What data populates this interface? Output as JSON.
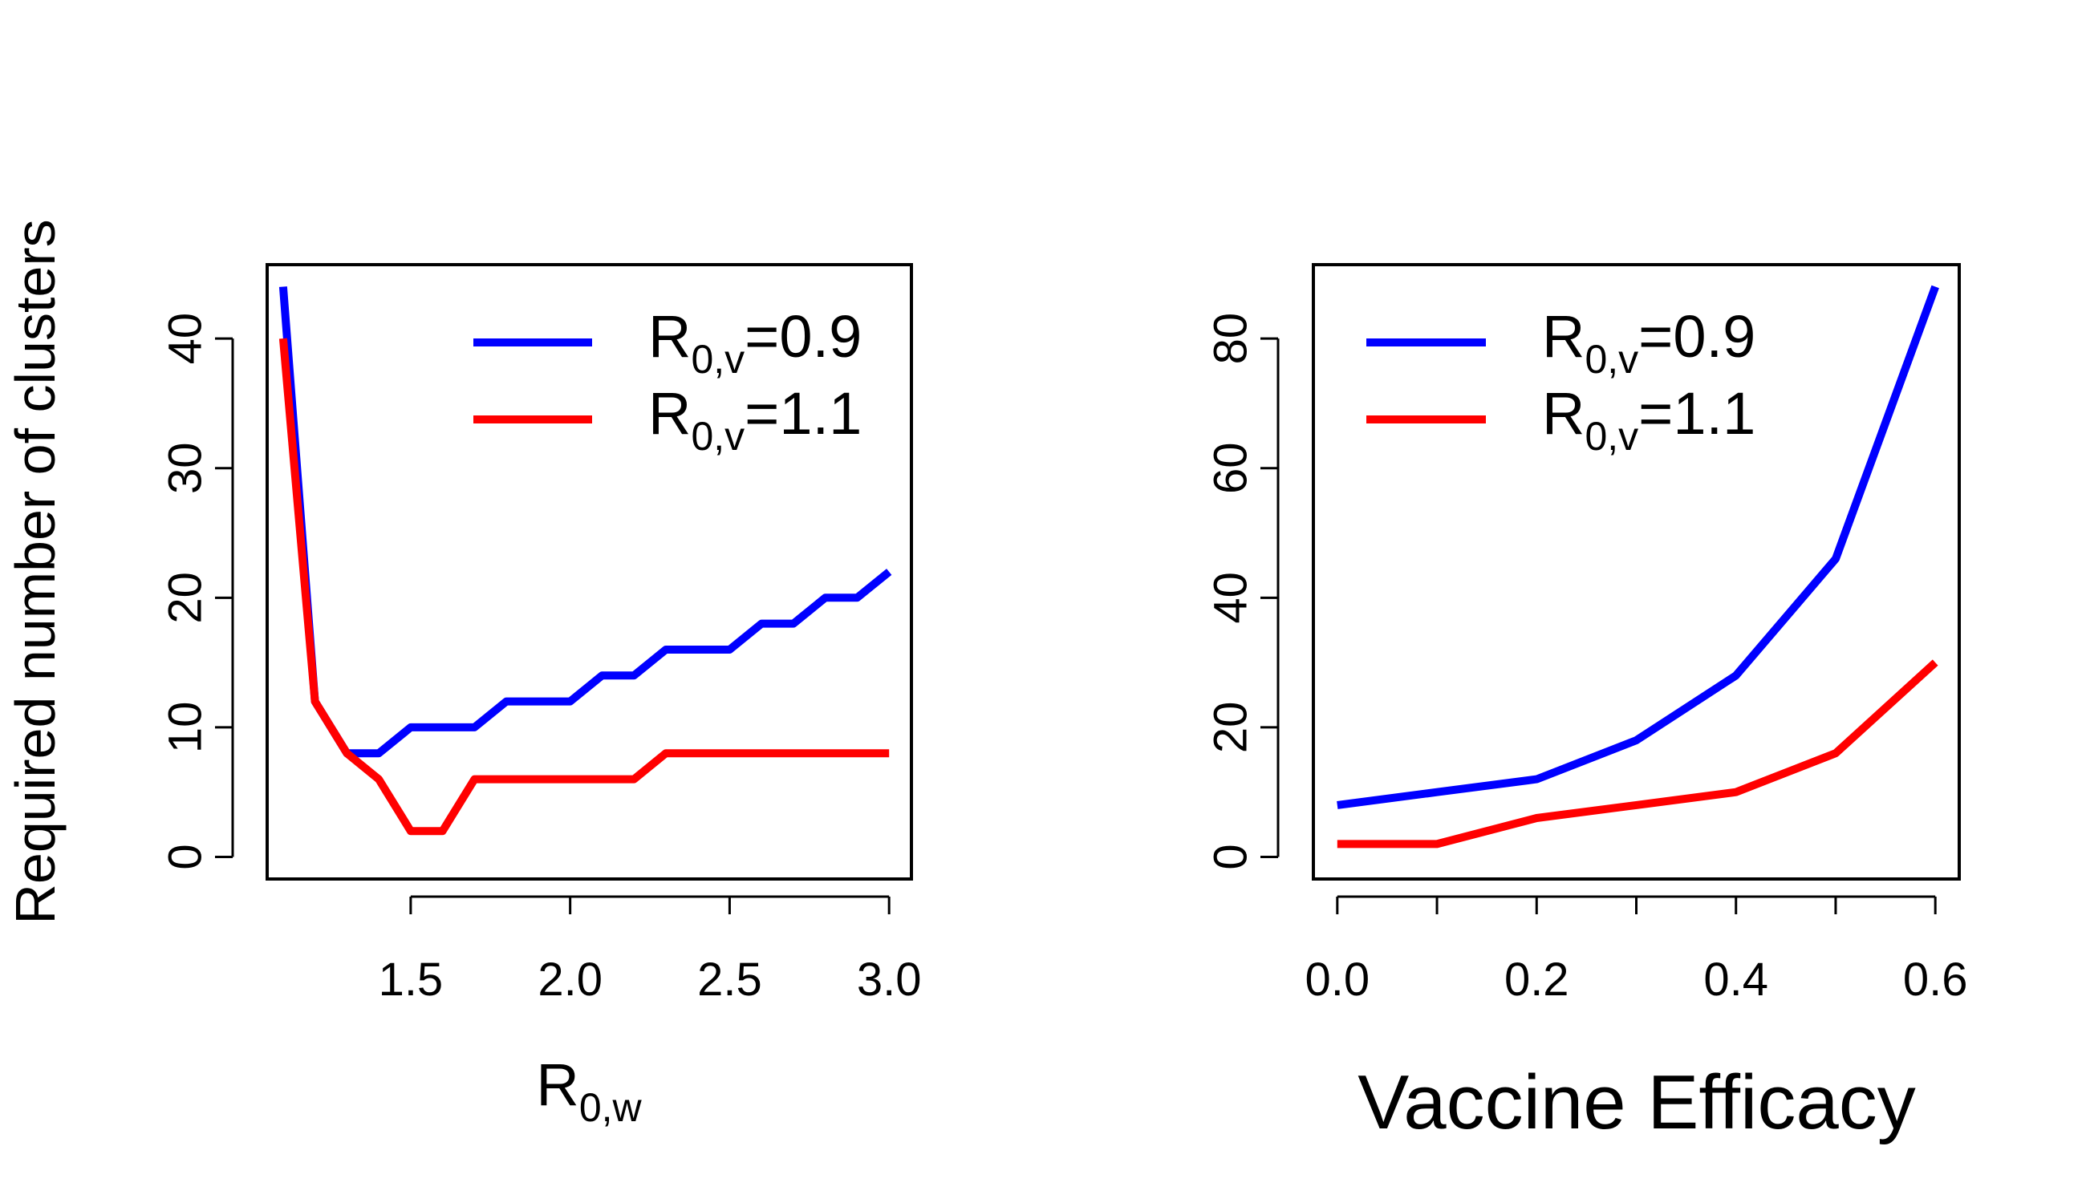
{
  "colors": {
    "series_blue": "#0000ff",
    "series_red": "#ff0000",
    "axis": "#000000"
  },
  "chart_data": [
    {
      "type": "line",
      "xlabel": {
        "main": "R",
        "sub": "0,w"
      },
      "ylabel": "Required number of clusters",
      "xlim": [
        1.05,
        3.07
      ],
      "ylim": [
        -1.7,
        45.7
      ],
      "xticks": [
        1.5,
        2.0,
        2.5,
        3.0
      ],
      "xtick_labels": [
        "1.5",
        "2.0",
        "2.5",
        "3.0"
      ],
      "yticks": [
        0,
        10,
        20,
        30,
        40
      ],
      "ytick_labels": [
        "0",
        "10",
        "20",
        "30",
        "40"
      ],
      "grid": false,
      "legend_position": "top-right",
      "x": [
        1.1,
        1.2,
        1.3,
        1.4,
        1.5,
        1.6,
        1.7,
        1.8,
        1.9,
        2.0,
        2.1,
        2.2,
        2.3,
        2.4,
        2.5,
        2.6,
        2.7,
        2.8,
        2.9,
        3.0
      ],
      "series": [
        {
          "label": {
            "main": "R",
            "sub": "0,v",
            "tail": "=0.9"
          },
          "color": "#0000ff",
          "values": [
            44,
            12,
            8,
            8,
            10,
            10,
            10,
            12,
            12,
            12,
            14,
            14,
            16,
            16,
            16,
            18,
            18,
            20,
            20,
            22
          ]
        },
        {
          "label": {
            "main": "R",
            "sub": "0,v",
            "tail": "=1.1"
          },
          "color": "#ff0000",
          "values": [
            40,
            12,
            8,
            6,
            2,
            2,
            6,
            6,
            6,
            6,
            6,
            6,
            8,
            8,
            8,
            8,
            8,
            8,
            8,
            8
          ]
        }
      ]
    },
    {
      "type": "line",
      "xlabel": "Vaccine Efficacy",
      "ylabel": "",
      "xlim": [
        -0.024,
        0.624
      ],
      "ylim": [
        -3.4,
        91.4
      ],
      "xticks": [
        0.0,
        0.1,
        0.2,
        0.3,
        0.4,
        0.5,
        0.6
      ],
      "xtick_labels": [
        "0.0",
        "",
        "0.2",
        "",
        "0.4",
        "",
        "0.6"
      ],
      "yticks": [
        0,
        20,
        40,
        60,
        80
      ],
      "ytick_labels": [
        "0",
        "20",
        "40",
        "60",
        "80"
      ],
      "grid": false,
      "legend_position": "top-left",
      "x": [
        0.0,
        0.1,
        0.2,
        0.3,
        0.4,
        0.5,
        0.6
      ],
      "series": [
        {
          "label": {
            "main": "R",
            "sub": "0,v",
            "tail": "=0.9"
          },
          "color": "#0000ff",
          "values": [
            8,
            10,
            12,
            18,
            28,
            46,
            88
          ]
        },
        {
          "label": {
            "main": "R",
            "sub": "0,v",
            "tail": "=1.1"
          },
          "color": "#ff0000",
          "values": [
            2,
            2,
            6,
            8,
            10,
            16,
            30
          ]
        }
      ]
    }
  ]
}
